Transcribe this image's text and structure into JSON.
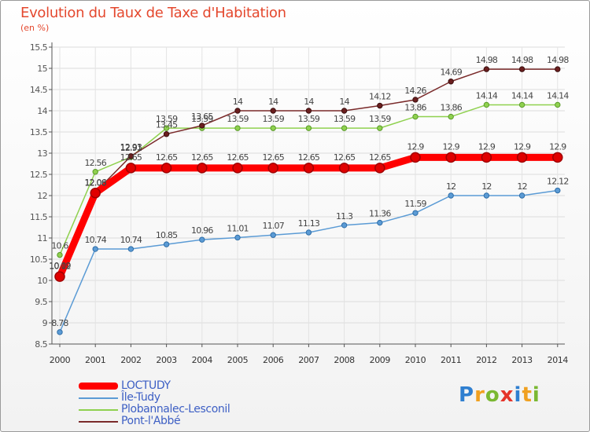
{
  "title": "Evolution du Taux de Taxe d'Habitation",
  "subtitle": "(en %)",
  "brand": {
    "text": "Proxiti",
    "letters": [
      {
        "ch": "P",
        "color": "#2f7fd0"
      },
      {
        "ch": "r",
        "color": "#f0a020"
      },
      {
        "ch": "o",
        "color": "#7ab832"
      },
      {
        "ch": "x",
        "color": "#e5342a"
      },
      {
        "ch": "i",
        "color": "#2f7fd0"
      },
      {
        "ch": "t",
        "color": "#f0a020"
      },
      {
        "ch": "i",
        "color": "#7ab832"
      }
    ]
  },
  "chart_data": {
    "type": "line",
    "title": "Evolution du Taux de Taxe d'Habitation",
    "ylabel": "(en %)",
    "xlabel": "",
    "x": [
      "2000",
      "2001",
      "2002",
      "2003",
      "2004",
      "2005",
      "2006",
      "2007",
      "2008",
      "2009",
      "2010",
      "2011",
      "2012",
      "2013",
      "2014"
    ],
    "ylim": [
      8.5,
      15.5
    ],
    "yticks": [
      "8.5",
      "9",
      "9.5",
      "10",
      "10.5",
      "11",
      "11.5",
      "12",
      "12.5",
      "13",
      "13.5",
      "14",
      "14.5",
      "15",
      "15.5"
    ],
    "grid": true,
    "legend_position": "bottom-left",
    "series": [
      {
        "name": "LOCTUDY",
        "color": "#ff0000",
        "values": [
          10.09,
          12.06,
          12.65,
          12.65,
          12.65,
          12.65,
          12.65,
          12.65,
          12.65,
          12.65,
          12.9,
          12.9,
          12.9,
          12.9,
          12.9
        ],
        "labels": [
          "10.09",
          "12.06",
          "12.65",
          "12.65",
          "12.65",
          "12.65",
          "12.65",
          "12.65",
          "12.65",
          "12.65",
          "12.9",
          "12.9",
          "12.9",
          "12.9",
          "12.9"
        ]
      },
      {
        "name": "Île-Tudy",
        "color": "#5b9bd5",
        "values": [
          8.78,
          10.74,
          10.74,
          10.85,
          10.96,
          11.01,
          11.07,
          11.13,
          11.3,
          11.36,
          11.59,
          12.0,
          12.0,
          12.0,
          12.12
        ],
        "labels": [
          "8.78",
          "10.74",
          "10.74",
          "10.85",
          "10.96",
          "11.01",
          "11.07",
          "11.13",
          "11.3",
          "11.36",
          "11.59",
          "12",
          "12",
          "12",
          "12.12"
        ]
      },
      {
        "name": "Plobannalec-Lesconil",
        "color": "#8fd14f",
        "values": [
          10.6,
          12.56,
          12.91,
          13.59,
          13.59,
          13.59,
          13.59,
          13.59,
          13.59,
          13.59,
          13.86,
          13.86,
          14.14,
          14.14,
          14.14
        ],
        "labels": [
          "10.6",
          "12.56",
          "12.91",
          "13.59",
          "13.59",
          "13.59",
          "13.59",
          "13.59",
          "13.59",
          "13.59",
          "13.86",
          "13.86",
          "14.14",
          "14.14",
          "14.14"
        ]
      },
      {
        "name": "Pont-l'Abbé",
        "color": "#7a2a2a",
        "values": [
          10.12,
          12.08,
          12.93,
          13.45,
          13.65,
          14.0,
          14.0,
          14.0,
          14.0,
          14.12,
          14.26,
          14.69,
          14.98,
          14.98,
          14.98
        ],
        "labels": [
          "10.12",
          "12.08",
          "12.93",
          "13.45",
          "13.65",
          "14",
          "14",
          "14",
          "14",
          "14.12",
          "14.26",
          "14.69",
          "14.98",
          "14.98",
          "14.98"
        ]
      }
    ]
  }
}
